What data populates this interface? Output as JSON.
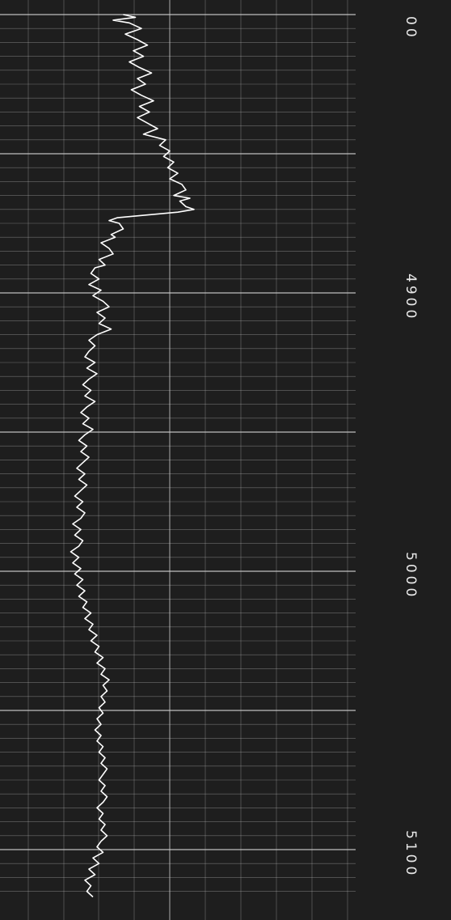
{
  "chart_data": {
    "type": "line",
    "orientation": "vertical",
    "axis": {
      "label_ticks": [
        {
          "value": 4900,
          "text": "4900"
        },
        {
          "value": 5000,
          "text": "5000"
        },
        {
          "value": 5100,
          "text": "5100"
        }
      ],
      "top_edge_label": "00",
      "range": [
        4800,
        5117
      ]
    },
    "series": [
      {
        "points": [
          [
            4800,
            67
          ],
          [
            4801,
            61
          ],
          [
            4802,
            72
          ],
          [
            4803,
            64
          ],
          [
            4805,
            58
          ],
          [
            4807,
            66
          ],
          [
            4809,
            60
          ],
          [
            4811,
            55
          ],
          [
            4813,
            62
          ],
          [
            4815,
            57
          ],
          [
            4817,
            64
          ],
          [
            4819,
            59
          ],
          [
            4821,
            53
          ],
          [
            4823,
            60
          ],
          [
            4825,
            56
          ],
          [
            4827,
            63
          ],
          [
            4829,
            58
          ],
          [
            4831,
            52
          ],
          [
            4833,
            59
          ],
          [
            4835,
            54
          ],
          [
            4837,
            60
          ],
          [
            4839,
            55
          ],
          [
            4841,
            50
          ],
          [
            4843,
            57
          ],
          [
            4845,
            46
          ],
          [
            4847,
            49
          ],
          [
            4849,
            44
          ],
          [
            4851,
            47
          ],
          [
            4853,
            42
          ],
          [
            4855,
            45
          ],
          [
            4857,
            40
          ],
          [
            4859,
            44
          ],
          [
            4861,
            38
          ],
          [
            4863,
            36
          ],
          [
            4865,
            42
          ],
          [
            4866,
            34
          ],
          [
            4867,
            39
          ],
          [
            4869,
            36
          ],
          [
            4870,
            32
          ],
          [
            4871,
            40
          ],
          [
            4873,
            70
          ],
          [
            4874,
            74
          ],
          [
            4875,
            69
          ],
          [
            4877,
            67
          ],
          [
            4879,
            73
          ],
          [
            4880,
            71
          ],
          [
            4882,
            78
          ],
          [
            4884,
            74
          ],
          [
            4886,
            72
          ],
          [
            4888,
            79
          ],
          [
            4890,
            76
          ],
          [
            4891,
            81
          ],
          [
            4893,
            83
          ],
          [
            4895,
            79
          ],
          [
            4897,
            84
          ],
          [
            4899,
            78
          ],
          [
            4901,
            82
          ],
          [
            4903,
            77
          ],
          [
            4905,
            74
          ],
          [
            4907,
            80
          ],
          [
            4909,
            76
          ],
          [
            4911,
            79
          ],
          [
            4913,
            73
          ],
          [
            4915,
            80
          ],
          [
            4917,
            84
          ],
          [
            4919,
            81
          ],
          [
            4921,
            84
          ],
          [
            4923,
            86
          ],
          [
            4925,
            81
          ],
          [
            4927,
            85
          ],
          [
            4929,
            80
          ],
          [
            4931,
            84
          ],
          [
            4933,
            87
          ],
          [
            4935,
            83
          ],
          [
            4937,
            86
          ],
          [
            4939,
            81
          ],
          [
            4941,
            85
          ],
          [
            4943,
            88
          ],
          [
            4945,
            84
          ],
          [
            4947,
            87
          ],
          [
            4949,
            82
          ],
          [
            4951,
            86
          ],
          [
            4953,
            89
          ],
          [
            4955,
            85
          ],
          [
            4957,
            88
          ],
          [
            4959,
            84
          ],
          [
            4961,
            87
          ],
          [
            4963,
            90
          ],
          [
            4965,
            86
          ],
          [
            4967,
            89
          ],
          [
            4969,
            85
          ],
          [
            4971,
            88
          ],
          [
            4973,
            91
          ],
          [
            4975,
            87
          ],
          [
            4977,
            90
          ],
          [
            4979,
            86
          ],
          [
            4981,
            88
          ],
          [
            4983,
            92
          ],
          [
            4985,
            88
          ],
          [
            4987,
            91
          ],
          [
            4989,
            87
          ],
          [
            4991,
            89
          ],
          [
            4993,
            93
          ],
          [
            4995,
            89
          ],
          [
            4997,
            92
          ],
          [
            4999,
            88
          ],
          [
            5001,
            91
          ],
          [
            5003,
            87
          ],
          [
            5005,
            90
          ],
          [
            5007,
            86
          ],
          [
            5009,
            89
          ],
          [
            5011,
            85
          ],
          [
            5013,
            87
          ],
          [
            5015,
            83
          ],
          [
            5017,
            86
          ],
          [
            5019,
            82
          ],
          [
            5021,
            84
          ],
          [
            5023,
            80
          ],
          [
            5025,
            83
          ],
          [
            5027,
            79
          ],
          [
            5029,
            81
          ],
          [
            5031,
            77
          ],
          [
            5033,
            80
          ],
          [
            5035,
            76
          ],
          [
            5037,
            78
          ],
          [
            5039,
            74
          ],
          [
            5041,
            77
          ],
          [
            5043,
            75
          ],
          [
            5045,
            78
          ],
          [
            5047,
            76
          ],
          [
            5049,
            79
          ],
          [
            5051,
            77
          ],
          [
            5053,
            80
          ],
          [
            5055,
            78
          ],
          [
            5057,
            81
          ],
          [
            5059,
            78
          ],
          [
            5061,
            80
          ],
          [
            5063,
            77
          ],
          [
            5065,
            79
          ],
          [
            5067,
            76
          ],
          [
            5069,
            78
          ],
          [
            5071,
            75
          ],
          [
            5073,
            77
          ],
          [
            5075,
            79
          ],
          [
            5077,
            76
          ],
          [
            5079,
            78
          ],
          [
            5081,
            75
          ],
          [
            5083,
            77
          ],
          [
            5085,
            80
          ],
          [
            5087,
            77
          ],
          [
            5089,
            79
          ],
          [
            5091,
            76
          ],
          [
            5093,
            78
          ],
          [
            5095,
            75
          ],
          [
            5097,
            78
          ],
          [
            5099,
            80
          ],
          [
            5101,
            77
          ],
          [
            5103,
            82
          ],
          [
            5105,
            79
          ],
          [
            5107,
            84
          ],
          [
            5109,
            81
          ],
          [
            5111,
            86
          ],
          [
            5113,
            83
          ],
          [
            5115,
            85
          ],
          [
            5117,
            82
          ]
        ]
      }
    ],
    "value_range": [
      0,
      100
    ],
    "colors": {
      "background": "#1e1e1e",
      "grid": "#cfcfcf",
      "trace": "#ffffff",
      "label": "#e8e8e8"
    }
  }
}
